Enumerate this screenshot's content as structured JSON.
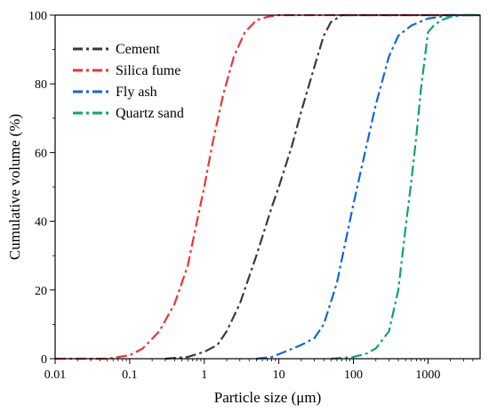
{
  "chart_data": {
    "type": "line",
    "title": "",
    "xlabel": "Particle size (μm)",
    "ylabel": "Cumulative volume (%)",
    "xscale": "log",
    "xlim": [
      0.01,
      5000
    ],
    "ylim": [
      0,
      100
    ],
    "xticks": [
      0.01,
      0.1,
      1,
      10,
      100,
      1000
    ],
    "xtick_labels": [
      "0.01",
      "0.1",
      "1",
      "10",
      "100",
      "1000"
    ],
    "yticks": [
      0,
      20,
      40,
      60,
      80,
      100
    ],
    "ytick_labels": [
      "0",
      "20",
      "40",
      "60",
      "80",
      "100"
    ],
    "grid": false,
    "legend_position": "top-left",
    "line_style": "dash-dot",
    "series": [
      {
        "name": "Cement",
        "color": "#3a3a3a",
        "points": [
          [
            0.3,
            0
          ],
          [
            0.6,
            0.5
          ],
          [
            1,
            2
          ],
          [
            1.5,
            4
          ],
          [
            2,
            8
          ],
          [
            3,
            16
          ],
          [
            5,
            30
          ],
          [
            8,
            44
          ],
          [
            10,
            50
          ],
          [
            15,
            62
          ],
          [
            20,
            72
          ],
          [
            30,
            85
          ],
          [
            40,
            94
          ],
          [
            50,
            98
          ],
          [
            70,
            100
          ],
          [
            5000,
            100
          ]
        ]
      },
      {
        "name": "Silica fume",
        "color": "#ee3333",
        "points": [
          [
            0.01,
            0
          ],
          [
            0.05,
            0
          ],
          [
            0.1,
            1
          ],
          [
            0.15,
            3
          ],
          [
            0.25,
            8
          ],
          [
            0.4,
            16
          ],
          [
            0.6,
            27
          ],
          [
            0.8,
            40
          ],
          [
            1,
            50
          ],
          [
            1.3,
            63
          ],
          [
            1.8,
            77
          ],
          [
            2.5,
            88
          ],
          [
            3.5,
            95
          ],
          [
            5,
            98.5
          ],
          [
            7,
            99.5
          ],
          [
            10,
            100
          ],
          [
            5000,
            100
          ]
        ]
      },
      {
        "name": "Fly ash",
        "color": "#1565d8",
        "points": [
          [
            5,
            0
          ],
          [
            8,
            0.5
          ],
          [
            12,
            2
          ],
          [
            20,
            4
          ],
          [
            30,
            6
          ],
          [
            40,
            10
          ],
          [
            60,
            22
          ],
          [
            80,
            35
          ],
          [
            100,
            45
          ],
          [
            150,
            62
          ],
          [
            200,
            74
          ],
          [
            300,
            88
          ],
          [
            400,
            94
          ],
          [
            600,
            97
          ],
          [
            1000,
            99
          ],
          [
            2000,
            100
          ],
          [
            5000,
            100
          ]
        ]
      },
      {
        "name": "Quartz sand",
        "color": "#10a36a",
        "points": [
          [
            50,
            0
          ],
          [
            100,
            0.5
          ],
          [
            150,
            1.5
          ],
          [
            200,
            3
          ],
          [
            300,
            8
          ],
          [
            400,
            20
          ],
          [
            500,
            38
          ],
          [
            600,
            52
          ],
          [
            700,
            65
          ],
          [
            800,
            78
          ],
          [
            1000,
            95
          ],
          [
            1200,
            97
          ],
          [
            1500,
            98.5
          ],
          [
            2000,
            99.5
          ],
          [
            3000,
            100
          ],
          [
            5000,
            100
          ]
        ]
      }
    ]
  }
}
